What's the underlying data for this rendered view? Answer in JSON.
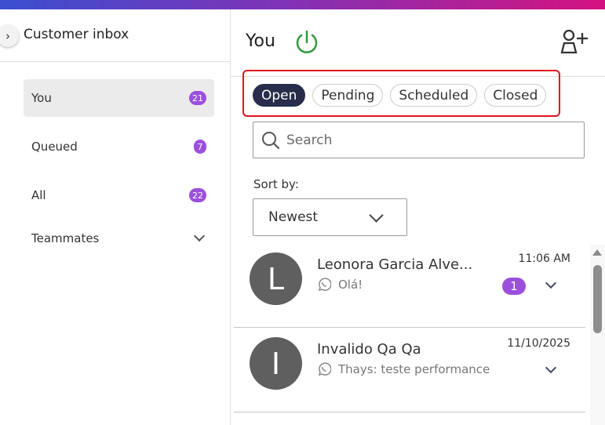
{
  "colors": {
    "brand_gradient": [
      "#3a4fd0",
      "#d4127f"
    ],
    "badge": "#9b4fdc",
    "active_pill": "#272d4b",
    "power": "#2e9a3a",
    "highlight": "#e0141e"
  },
  "sidebar": {
    "title": "Customer inbox",
    "items": [
      {
        "label": "You",
        "count": "21"
      },
      {
        "label": "Queued",
        "count": "7"
      },
      {
        "label": "All",
        "count": "22"
      },
      {
        "label": "Teammates"
      }
    ]
  },
  "main": {
    "title": "You",
    "filters": [
      "Open",
      "Pending",
      "Scheduled",
      "Closed"
    ],
    "active_filter": "Open",
    "search": {
      "placeholder": "Search",
      "value": ""
    },
    "sort": {
      "label": "Sort by:",
      "value": "Newest"
    },
    "conversations": [
      {
        "initial": "L",
        "name": "Leonora Garcia Alve...",
        "channel": "whatsapp-icon",
        "preview": "Olá!",
        "time": "11:06 AM",
        "unread": "1"
      },
      {
        "initial": "I",
        "name": "Invalido Qa Qa",
        "channel": "whatsapp-icon",
        "preview": "Thays: teste performance",
        "time": "11/10/2025"
      }
    ]
  }
}
